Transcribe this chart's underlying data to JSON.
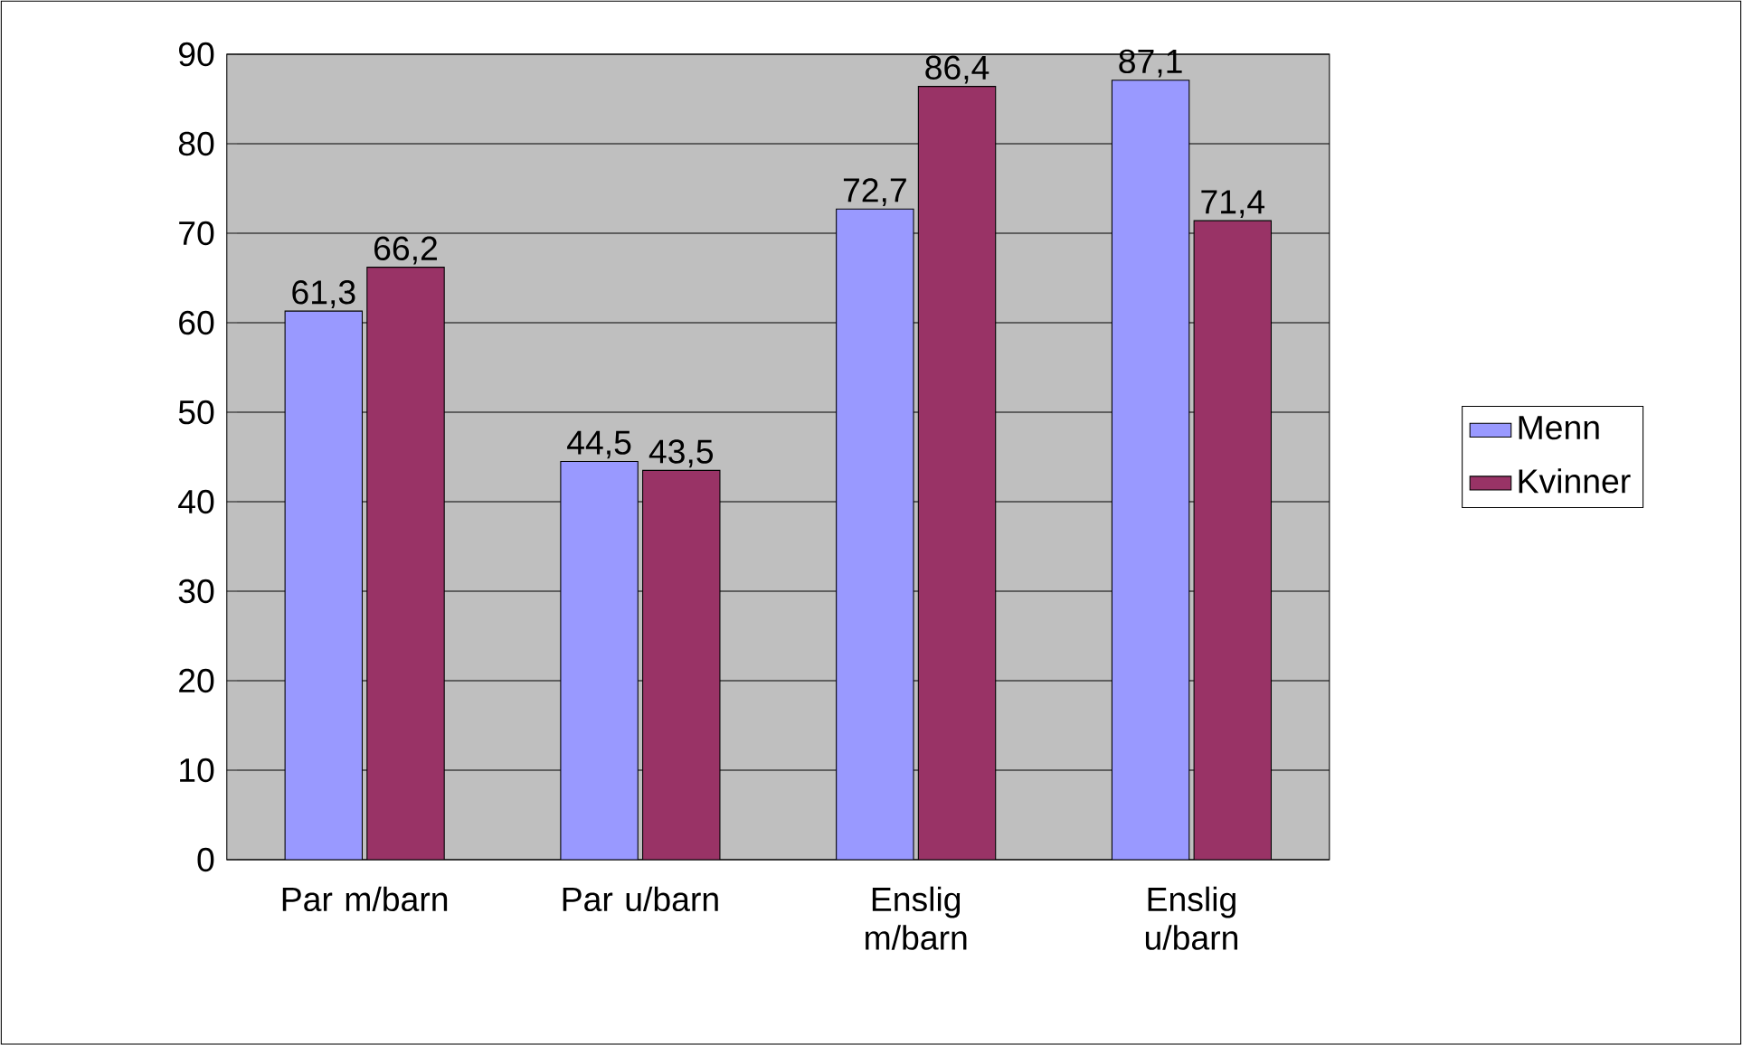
{
  "chart_data": {
    "type": "bar",
    "categories": [
      "Par m/barn",
      "Par u/barn",
      "Enslig m/barn",
      "Enslig u/barn"
    ],
    "series": [
      {
        "name": "Menn",
        "color": "#9999ff",
        "values": [
          61.3,
          44.5,
          72.7,
          87.1
        ],
        "value_labels": [
          "61,3",
          "44,5",
          "72,7",
          "87,1"
        ]
      },
      {
        "name": "Kvinner",
        "color": "#993366",
        "values": [
          66.2,
          43.5,
          86.4,
          71.4
        ],
        "value_labels": [
          "66,2",
          "43,5",
          "86,4",
          "71,4"
        ]
      }
    ],
    "ylim": [
      0,
      90
    ],
    "yticks": [
      0,
      10,
      20,
      30,
      40,
      50,
      60,
      70,
      80,
      90
    ],
    "grid": "y",
    "legend": "right"
  }
}
